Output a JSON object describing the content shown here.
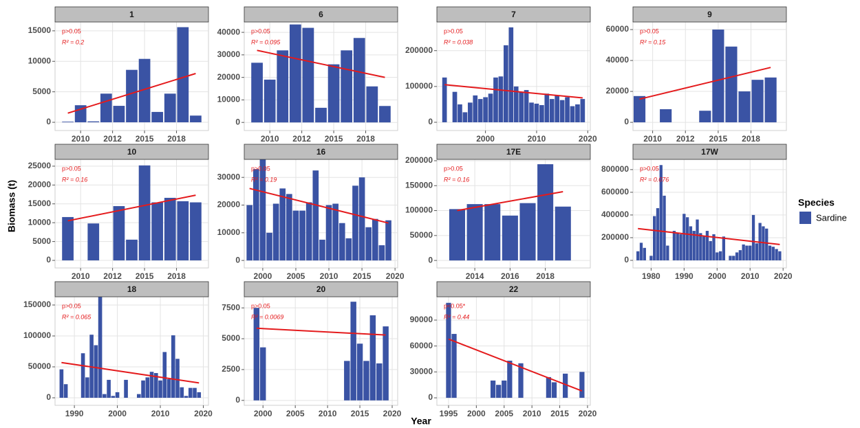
{
  "chart_data": {
    "type": "bar",
    "y_label": "Biomass (t)",
    "x_label": "Year",
    "legend_title": "Species",
    "series_name": "Sardine",
    "color": "#3a53a4",
    "trend_color": "#e41a1c",
    "grid": true,
    "panels": [
      {
        "title": "1",
        "x": [
          2009,
          2010,
          2011,
          2012,
          2013,
          2014,
          2015,
          2016,
          2017,
          2018,
          2019
        ],
        "values": [
          100,
          2800,
          150,
          4700,
          2700,
          8600,
          10400,
          1700,
          4700,
          15600,
          1100
        ],
        "xlim": [
          2008,
          2020
        ],
        "xticks": [
          2010,
          {
            "value": 2012.5,
            "label": "2012"
          },
          2015,
          {
            "value": 2017.5,
            "label": "2018"
          }
        ],
        "ylim": [
          -1350,
          16450
        ],
        "yticks": [
          0,
          5000,
          10000,
          15000
        ],
        "p_label": "p>0.05",
        "r2_label": "R² = 0.2",
        "trend": {
          "x": [
            2009,
            2019
          ],
          "y": [
            1500,
            8000
          ]
        }
      },
      {
        "title": "6",
        "x": [
          2009,
          2010,
          2011,
          2012,
          2013,
          2014,
          2015,
          2016,
          2017,
          2018,
          2019
        ],
        "values": [
          26500,
          19000,
          32000,
          43500,
          42000,
          6500,
          25800,
          32000,
          37500,
          16000,
          7300
        ],
        "xlim": [
          2008,
          2020
        ],
        "xticks": [
          2010,
          {
            "value": 2012.5,
            "label": "2012"
          },
          2015,
          {
            "value": 2017.5,
            "label": "2018"
          }
        ],
        "ylim": [
          -3600,
          44600
        ],
        "yticks": [
          0,
          10000,
          20000,
          30000,
          40000
        ],
        "p_label": "p>0.05",
        "r2_label": "R² = 0.095",
        "trend": {
          "x": [
            2009,
            2019
          ],
          "y": [
            32000,
            20000
          ]
        }
      },
      {
        "title": "7",
        "x": [
          1992,
          1994,
          1995,
          1996,
          1997,
          1998,
          1999,
          2000,
          2001,
          2002,
          2003,
          2004,
          2005,
          2006,
          2007,
          2008,
          2009,
          2010,
          2011,
          2012,
          2013,
          2014,
          2015,
          2016,
          2017,
          2018,
          2019
        ],
        "values": [
          125000,
          85000,
          50000,
          28000,
          55000,
          75000,
          65000,
          70000,
          80000,
          125000,
          128000,
          215000,
          265000,
          100000,
          85000,
          90000,
          55000,
          52000,
          48000,
          80000,
          65000,
          75000,
          62000,
          70000,
          45000,
          50000,
          65000
        ],
        "xlim": [
          1990.5,
          2020.5
        ],
        "xticks": [
          2000,
          2010,
          2020
        ],
        "ylim": [
          -23000,
          280000
        ],
        "yticks": [
          0,
          100000,
          200000
        ],
        "p_label": "p>0.05",
        "r2_label": "R² = 0.038",
        "trend": {
          "x": [
            1992,
            2019
          ],
          "y": [
            105000,
            68000
          ]
        }
      },
      {
        "title": "9",
        "x": [
          2009,
          2011,
          2014,
          2015,
          2016,
          2017,
          2018,
          2019
        ],
        "values": [
          17000,
          8500,
          7500,
          60000,
          49000,
          20000,
          27500,
          29000
        ],
        "xlim": [
          2008.5,
          2020.2
        ],
        "xticks": [
          2010,
          {
            "value": 2012.5,
            "label": "2012"
          },
          2015,
          {
            "value": 2017.5,
            "label": "2018"
          }
        ],
        "ylim": [
          -5300,
          64900
        ],
        "yticks": [
          0,
          20000,
          40000,
          60000
        ],
        "p_label": "p>0.05",
        "r2_label": "R² = 0.15",
        "trend": {
          "x": [
            2009,
            2019
          ],
          "y": [
            15000,
            35500
          ]
        }
      },
      {
        "title": "10",
        "x": [
          2009,
          2011,
          2013,
          2014,
          2015,
          2016,
          2017,
          2018,
          2019
        ],
        "values": [
          11500,
          9800,
          14400,
          5500,
          25200,
          15400,
          16600,
          15700,
          15400
        ],
        "xlim": [
          2008,
          2020
        ],
        "xticks": [
          2010,
          {
            "value": 2012.5,
            "label": "2012"
          },
          2015,
          {
            "value": 2017.5,
            "label": "2018"
          }
        ],
        "ylim": [
          -2000,
          26800
        ],
        "yticks": [
          0,
          5000,
          10000,
          15000,
          20000,
          25000
        ],
        "p_label": "p>0.05",
        "r2_label": "R² = 0.16",
        "trend": {
          "x": [
            2009,
            2019
          ],
          "y": [
            10500,
            17300
          ]
        }
      },
      {
        "title": "16",
        "x": [
          1998,
          1999,
          2000,
          2001,
          2002,
          2003,
          2004,
          2005,
          2006,
          2007,
          2008,
          2009,
          2010,
          2011,
          2012,
          2013,
          2014,
          2015,
          2016,
          2017,
          2018,
          2019
        ],
        "values": [
          20000,
          33000,
          36500,
          10000,
          20500,
          26000,
          24000,
          18000,
          18000,
          21000,
          32500,
          7500,
          20000,
          20500,
          13500,
          8000,
          27000,
          30000,
          12000,
          15000,
          5500,
          14500
        ],
        "xlim": [
          1997.2,
          2020.4
        ],
        "xticks": [
          2000,
          2005,
          2010,
          2015,
          2020
        ],
        "ylim": [
          -2700,
          36500
        ],
        "yticks": [
          0,
          10000,
          20000,
          30000
        ],
        "p_label": "p>0.05",
        "r2_label": "R² = 0.19",
        "trend": {
          "x": [
            1998,
            2019
          ],
          "y": [
            26000,
            13500
          ]
        }
      },
      {
        "title": "17E",
        "x": [
          2013,
          2014,
          2015,
          2016,
          2017,
          2018,
          2019
        ],
        "values": [
          103000,
          113000,
          113000,
          90000,
          115000,
          193000,
          108000
        ],
        "xlim": [
          2011.85,
          2020.55
        ],
        "xticks": [
          2014,
          2016,
          2018
        ],
        "ylim": [
          -15000,
          202700
        ],
        "yticks": [
          0,
          50000,
          100000,
          150000,
          200000
        ],
        "p_label": "p>0.05",
        "r2_label": "R² = 0.16",
        "trend": {
          "x": [
            2013,
            2019
          ],
          "y": [
            100000,
            138000
          ]
        }
      },
      {
        "title": "17W",
        "x": [
          1976,
          1977,
          1978,
          1980,
          1981,
          1982,
          1983,
          1984,
          1985,
          1987,
          1988,
          1989,
          1990,
          1991,
          1992,
          1993,
          1994,
          1995,
          1996,
          1997,
          1998,
          1999,
          2000,
          2001,
          2002,
          2004,
          2005,
          2006,
          2007,
          2008,
          2009,
          2010,
          2011,
          2012,
          2013,
          2014,
          2015,
          2016,
          2017,
          2018,
          2019
        ],
        "values": [
          80000,
          155000,
          110000,
          40000,
          390000,
          460000,
          840000,
          570000,
          130000,
          260000,
          240000,
          230000,
          410000,
          380000,
          300000,
          260000,
          360000,
          240000,
          210000,
          260000,
          170000,
          230000,
          70000,
          80000,
          210000,
          40000,
          40000,
          70000,
          90000,
          140000,
          130000,
          130000,
          400000,
          150000,
          330000,
          300000,
          280000,
          130000,
          120000,
          100000,
          80000
        ],
        "xlim": [
          1974.5,
          2021
        ],
        "xticks": [
          1980,
          1990,
          2000,
          2010,
          2020
        ],
        "ylim": [
          -66700,
          890000
        ],
        "yticks": [
          0,
          200000,
          400000,
          600000,
          800000
        ],
        "p_label": "p>0.05",
        "r2_label": "R² = 0.076",
        "trend": {
          "x": [
            1976,
            2019
          ],
          "y": [
            280000,
            140000
          ]
        }
      },
      {
        "title": "18",
        "x": [
          1987,
          1988,
          1992,
          1993,
          1994,
          1995,
          1996,
          1997,
          1998,
          1999,
          2000,
          2002,
          2005,
          2006,
          2007,
          2008,
          2009,
          2010,
          2011,
          2012,
          2013,
          2014,
          2015,
          2016,
          2017,
          2018,
          2019
        ],
        "values": [
          46000,
          22000,
          72000,
          33000,
          102000,
          85000,
          173000,
          6000,
          29000,
          3000,
          9000,
          29000,
          6000,
          28000,
          33000,
          42000,
          40000,
          28000,
          74000,
          30000,
          101000,
          63000,
          17000,
          3000,
          16000,
          16000,
          9000
        ],
        "xlim": [
          1985.5,
          2021.2
        ],
        "xticks": [
          1990,
          2000,
          2010,
          2020
        ],
        "ylim": [
          -12200,
          163300
        ],
        "yticks": [
          0,
          50000,
          100000,
          150000
        ],
        "p_label": "p>0.05",
        "r2_label": "R² = 0.065",
        "trend": {
          "x": [
            1987,
            2019
          ],
          "y": [
            57000,
            24000
          ]
        }
      },
      {
        "title": "20",
        "x": [
          1999,
          2000,
          2013,
          2014,
          2015,
          2016,
          2017,
          2018,
          2019
        ],
        "values": [
          7500,
          4300,
          3200,
          8000,
          4600,
          3200,
          6900,
          3000,
          6000
        ],
        "xlim": [
          1997.1,
          2020.85
        ],
        "xticks": [
          2000,
          2005,
          2010,
          2015,
          2020
        ],
        "ylim": [
          -400,
          8400
        ],
        "yticks": [
          0,
          2500,
          5000,
          7500
        ],
        "p_label": "p>0.05",
        "r2_label": "R² = 0.0069",
        "trend": {
          "x": [
            1999,
            2019
          ],
          "y": [
            5850,
            5300
          ]
        }
      },
      {
        "title": "22",
        "x": [
          1995,
          1996,
          2003,
          2004,
          2005,
          2006,
          2008,
          2013,
          2014,
          2016,
          2019
        ],
        "values": [
          110000,
          74000,
          20000,
          15000,
          20000,
          43000,
          40000,
          24000,
          18000,
          28000,
          30000
        ],
        "xlim": [
          1992.9,
          2020.5
        ],
        "xticks": [
          1995,
          2000,
          2005,
          2010,
          2015,
          2020
        ],
        "ylim": [
          -8700,
          117000
        ],
        "yticks": [
          0,
          30000,
          60000,
          90000
        ],
        "p_label": "p<0.05*",
        "r2_label": "R² = 0.44",
        "trend": {
          "x": [
            1995,
            2019
          ],
          "y": [
            68000,
            8000
          ]
        }
      }
    ]
  }
}
